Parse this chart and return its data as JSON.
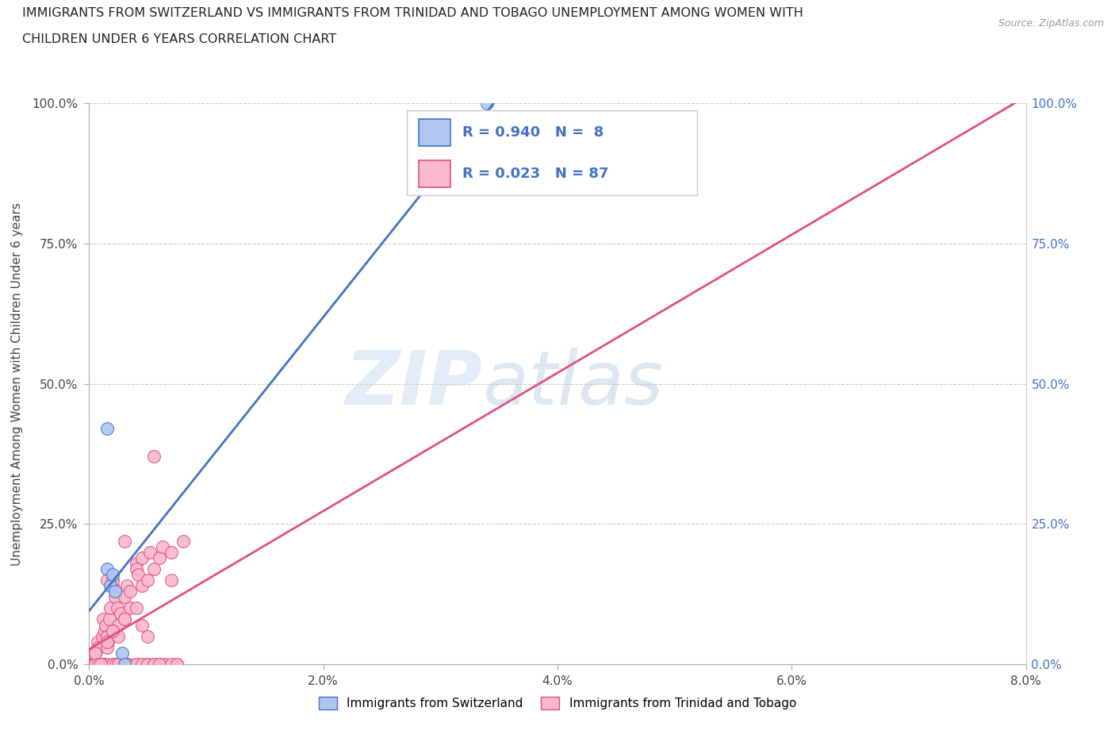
{
  "title_line1": "IMMIGRANTS FROM SWITZERLAND VS IMMIGRANTS FROM TRINIDAD AND TOBAGO UNEMPLOYMENT AMONG WOMEN WITH",
  "title_line2": "CHILDREN UNDER 6 YEARS CORRELATION CHART",
  "source_text": "Source: ZipAtlas.com",
  "ylabel": "Unemployment Among Women with Children Under 6 years",
  "xlim": [
    0,
    8.0
  ],
  "ylim": [
    0,
    1.0
  ],
  "xtick_labels": [
    "0.0%",
    "2.0%",
    "4.0%",
    "6.0%",
    "8.0%"
  ],
  "xtick_values": [
    0,
    2.0,
    4.0,
    6.0,
    8.0
  ],
  "ytick_labels": [
    "0.0%",
    "25.0%",
    "50.0%",
    "75.0%",
    "100.0%"
  ],
  "ytick_values": [
    0,
    0.25,
    0.5,
    0.75,
    1.0
  ],
  "switzerland_color": "#aec6f0",
  "tt_color": "#f9b8cb",
  "trendline_switzerland_color": "#4472c4",
  "trendline_tt_color": "#e05080",
  "watermark_zip": "ZIP",
  "watermark_atlas": "atlas",
  "switzerland_x": [
    0.15,
    0.15,
    0.18,
    0.2,
    0.22,
    0.28,
    0.3,
    3.4
  ],
  "switzerland_y": [
    0.42,
    0.17,
    0.14,
    0.16,
    0.13,
    0.02,
    0.0,
    1.0
  ],
  "tt_x": [
    0.02,
    0.03,
    0.04,
    0.05,
    0.05,
    0.06,
    0.07,
    0.07,
    0.08,
    0.08,
    0.09,
    0.1,
    0.1,
    0.11,
    0.12,
    0.12,
    0.13,
    0.13,
    0.14,
    0.15,
    0.15,
    0.16,
    0.17,
    0.18,
    0.2,
    0.2,
    0.2,
    0.22,
    0.23,
    0.24,
    0.25,
    0.25,
    0.27,
    0.3,
    0.3,
    0.32,
    0.33,
    0.35,
    0.35,
    0.4,
    0.4,
    0.4,
    0.42,
    0.45,
    0.45,
    0.5,
    0.5,
    0.5,
    0.52,
    0.55,
    0.55,
    0.6,
    0.6,
    0.6,
    0.63,
    0.65,
    0.7,
    0.7,
    0.75,
    0.8,
    0.05,
    0.05,
    0.05,
    0.08,
    0.1,
    0.15,
    0.2,
    0.25,
    0.3,
    0.32,
    0.4,
    0.45,
    0.5,
    0.55,
    0.6,
    0.7,
    0.75,
    0.55,
    0.3,
    0.15,
    0.2,
    0.4,
    0.45,
    0.5,
    0.15,
    0.2,
    0.3
  ],
  "tt_y": [
    0.0,
    0.0,
    0.0,
    0.0,
    0.02,
    0.0,
    0.0,
    0.04,
    0.0,
    0.03,
    0.0,
    0.0,
    0.0,
    0.05,
    0.08,
    0.0,
    0.06,
    0.0,
    0.07,
    0.0,
    0.05,
    0.04,
    0.08,
    0.1,
    0.14,
    0.15,
    0.0,
    0.12,
    0.0,
    0.1,
    0.07,
    0.0,
    0.09,
    0.12,
    0.0,
    0.14,
    0.0,
    0.1,
    0.13,
    0.18,
    0.17,
    0.0,
    0.16,
    0.14,
    0.19,
    0.0,
    0.15,
    0.0,
    0.2,
    0.0,
    0.17,
    0.0,
    0.19,
    0.0,
    0.21,
    0.0,
    0.15,
    0.2,
    0.0,
    0.22,
    0.0,
    0.0,
    0.02,
    0.0,
    0.0,
    0.03,
    0.06,
    0.05,
    0.08,
    0.0,
    0.0,
    0.0,
    0.0,
    0.0,
    0.0,
    0.0,
    0.0,
    0.37,
    0.22,
    0.15,
    0.15,
    0.1,
    0.07,
    0.05,
    0.04,
    0.06,
    0.08
  ]
}
